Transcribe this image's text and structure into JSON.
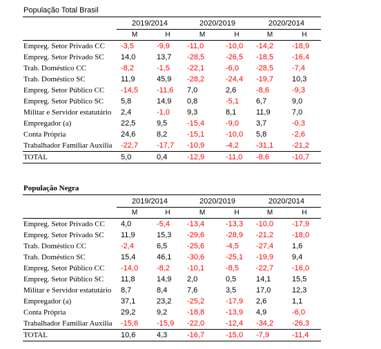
{
  "tables": [
    {
      "title": "População Total Brasil",
      "periods": [
        "2019/2014",
        "2020/2019",
        "2020/2014"
      ],
      "subheaders": [
        "M",
        "H",
        "M",
        "H",
        "M",
        "H"
      ],
      "rows": [
        {
          "label": "Empreg. Setor Privado CC",
          "values": [
            "-3,5",
            "-9,9",
            "-11,0",
            "-10,0",
            "-14,2",
            "-18,9"
          ]
        },
        {
          "label": "Empreg. Setor Privado SC",
          "values": [
            "14,0",
            "13,7",
            "-28,5",
            "-26,5",
            "-18,5",
            "-16,4"
          ]
        },
        {
          "label": "Trab. Doméstico CC",
          "values": [
            "-8,2",
            "-1,5",
            "-22,1",
            "-6,0",
            "-28,5",
            "-7,4"
          ]
        },
        {
          "label": "Trab. Doméstico SC",
          "values": [
            "11,9",
            "45,9",
            "-28,2",
            "-24,4",
            "-19,7",
            "10,3"
          ]
        },
        {
          "label": "Empreg. Setor Público CC",
          "values": [
            "-14,5",
            "-11,6",
            "7,0",
            "2,6",
            "-8,6",
            "-9,3"
          ]
        },
        {
          "label": "Empreg. Setor Público SC",
          "values": [
            "5,8",
            "14,9",
            "0,8",
            "-5,1",
            "6,7",
            "9,0"
          ]
        },
        {
          "label": "Militar e Servidor estatutário",
          "values": [
            "2,4",
            "-1,0",
            "9,3",
            "8,1",
            "11,9",
            "7,0"
          ]
        },
        {
          "label": "Empregador (a)",
          "values": [
            "22,5",
            "9,5",
            "-15,4",
            "-9,0",
            "3,7",
            "-0,3"
          ]
        },
        {
          "label": "Conta Própria",
          "values": [
            "24,6",
            "8,2",
            "-15,1",
            "-10,0",
            "5,8",
            "-2,6"
          ]
        },
        {
          "label": "Trabalhador Familiar Auxilia",
          "values": [
            "-22,7",
            "-17,7",
            "-10,9",
            "-4,2",
            "-31,1",
            "-21,2"
          ]
        }
      ],
      "total": {
        "label": "TOTAL",
        "values": [
          "5,0",
          "0,4",
          "-12,9",
          "-11,0",
          "-8,6",
          "-10,7"
        ]
      }
    },
    {
      "title": "População Negra",
      "periods": [
        "2019/2014",
        "2020/2019",
        "2020/2014"
      ],
      "subheaders": [
        "M",
        "H",
        "M",
        "H",
        "M",
        "H"
      ],
      "rows": [
        {
          "label": "Empreg. Setor Privado CC",
          "values": [
            "4,0",
            "-5,4",
            "-13,4",
            "-13,3",
            "-10,0",
            "-17,9"
          ]
        },
        {
          "label": "Empreg. Setor Privado SC",
          "values": [
            "11,9",
            "15,3",
            "-29,6",
            "-28,9",
            "-21,2",
            "-18,0"
          ]
        },
        {
          "label": "Trab. Doméstico CC",
          "values": [
            "-2,4",
            "6,5",
            "-25,6",
            "-4,5",
            "-27,4",
            "1,6"
          ]
        },
        {
          "label": "Trab. Doméstico SC",
          "values": [
            "15,4",
            "46,1",
            "-30,6",
            "-25,1",
            "-19,9",
            "9,4"
          ]
        },
        {
          "label": "Empreg. Setor Público CC",
          "values": [
            "-14,0",
            "-8,2",
            "-10,1",
            "-8,5",
            "-22,7",
            "-16,0"
          ]
        },
        {
          "label": "Empreg. Setor Público SC",
          "values": [
            "11,8",
            "14,9",
            "2,0",
            "0,5",
            "14,1",
            "15,5"
          ]
        },
        {
          "label": "Militar e Servidor estatutário",
          "values": [
            "8,7",
            "8,4",
            "7,6",
            "3,5",
            "17,0",
            "12,3"
          ]
        },
        {
          "label": "Empregador (a)",
          "values": [
            "37,1",
            "23,2",
            "-25,2",
            "-17,9",
            "2,6",
            "1,1"
          ]
        },
        {
          "label": "Conta Própria",
          "values": [
            "29,2",
            "9,2",
            "-18,8",
            "-13,9",
            "4,9",
            "-6,0"
          ]
        },
        {
          "label": "Trabalhador Familiar Auxilia",
          "values": [
            "-15,6",
            "-15,9",
            "-22,0",
            "-12,4",
            "-34,2",
            "-26,3"
          ]
        }
      ],
      "total": {
        "label": "TOTAL",
        "values": [
          "10,6",
          "4,3",
          "-16,7",
          "-15,0",
          "-7,9",
          "-11,4"
        ]
      }
    }
  ],
  "colors": {
    "negative": "#ff0000",
    "positive": "#000000"
  }
}
